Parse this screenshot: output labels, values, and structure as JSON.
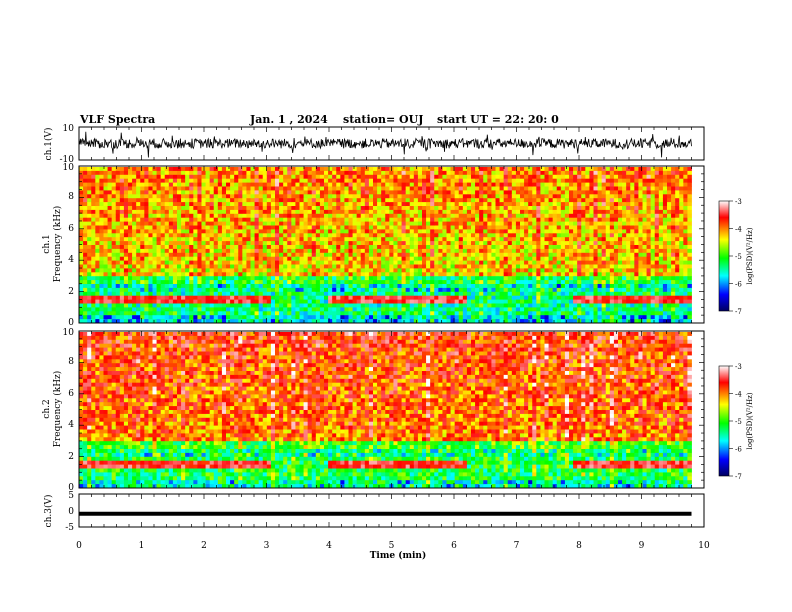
{
  "header": {
    "title": "VLF Spectra",
    "date": "Jan. 1 , 2024",
    "station": "station= OUJ",
    "start_ut": "start  UT =   22: 20: 0"
  },
  "chart_data": [
    {
      "type": "line",
      "panel": "ch1-waveform",
      "ylabel": "ch.1(V)",
      "ylim": [
        -10,
        10
      ],
      "y_ticks": [
        "10",
        "-10"
      ],
      "xlim": [
        0,
        10
      ],
      "baseline_v": 0,
      "amplitude_v": [
        -10,
        10
      ],
      "color": "#000000"
    },
    {
      "type": "heatmap",
      "panel": "ch1-spectrogram",
      "ylabel": "ch.1\nFrequency (kHz)",
      "ylim": [
        0,
        10
      ],
      "y_ticks": [
        "0",
        "2",
        "4",
        "6",
        "8",
        "10"
      ],
      "xlim": [
        0,
        10
      ],
      "value_label": "log(PSD)(V²/Hz)",
      "value_range": [
        -7,
        -3
      ],
      "colorbar_ticks": [
        "-3",
        "-4",
        "-5",
        "-6",
        "-7"
      ],
      "data_end_min": 9.8
    },
    {
      "type": "heatmap",
      "panel": "ch2-spectrogram",
      "ylabel": "ch.2\nFrequency (kHz)",
      "ylim": [
        0,
        10
      ],
      "y_ticks": [
        "0",
        "2",
        "4",
        "6",
        "8",
        "10"
      ],
      "xlim": [
        0,
        10
      ],
      "value_label": "log(PSD)(V²/Hz)",
      "value_range": [
        -7,
        -3
      ],
      "colorbar_ticks": [
        "-3",
        "-4",
        "-5",
        "-6",
        "-7"
      ],
      "data_end_min": 9.8
    },
    {
      "type": "line",
      "panel": "ch3-waveform",
      "ylabel": "ch.3(V)",
      "ylim": [
        -5,
        5
      ],
      "y_ticks": [
        "5",
        "0",
        "-5"
      ],
      "xlim": [
        0,
        10
      ],
      "xlabel": "Time (min)",
      "x_ticks": [
        "0",
        "1",
        "2",
        "3",
        "4",
        "5",
        "6",
        "7",
        "8",
        "9",
        "10"
      ],
      "value_v": -1,
      "color": "#000000"
    }
  ],
  "colors": {
    "colormap": [
      "#000060",
      "#0000ff",
      "#00ffff",
      "#00ff00",
      "#ffff00",
      "#ff0000",
      "#ffffff"
    ]
  }
}
